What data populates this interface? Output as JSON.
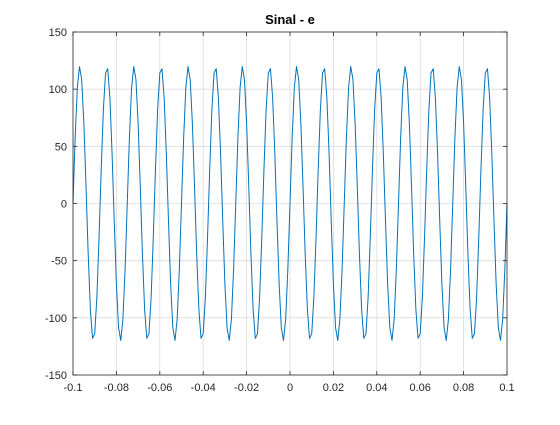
{
  "chart_data": {
    "type": "line",
    "title": "Sinal - e",
    "xlabel": "",
    "ylabel": "",
    "xlim": [
      -0.1,
      0.1
    ],
    "ylim": [
      -150,
      150
    ],
    "grid": true,
    "x_ticks": [
      -0.1,
      -0.08,
      -0.06,
      -0.04,
      -0.02,
      0,
      0.02,
      0.04,
      0.06,
      0.08,
      0.1
    ],
    "x_tick_labels": [
      "-0.1",
      "-0.08",
      "-0.06",
      "-0.04",
      "-0.02",
      "0",
      "0.02",
      "0.04",
      "0.06",
      "0.08",
      "0.1"
    ],
    "y_ticks": [
      -150,
      -100,
      -50,
      0,
      50,
      100,
      150
    ],
    "y_tick_labels": [
      "-150",
      "-100",
      "-50",
      "0",
      "50",
      "100",
      "150"
    ],
    "series": [
      {
        "color": "#0072BD",
        "signal": {
          "kind": "sinusoid",
          "amplitude": 120,
          "frequency_hz": 80,
          "phase_rad": 1.57,
          "x_start": -0.1,
          "x_end": 0.1,
          "sample_step": 0.001
        }
      }
    ]
  }
}
